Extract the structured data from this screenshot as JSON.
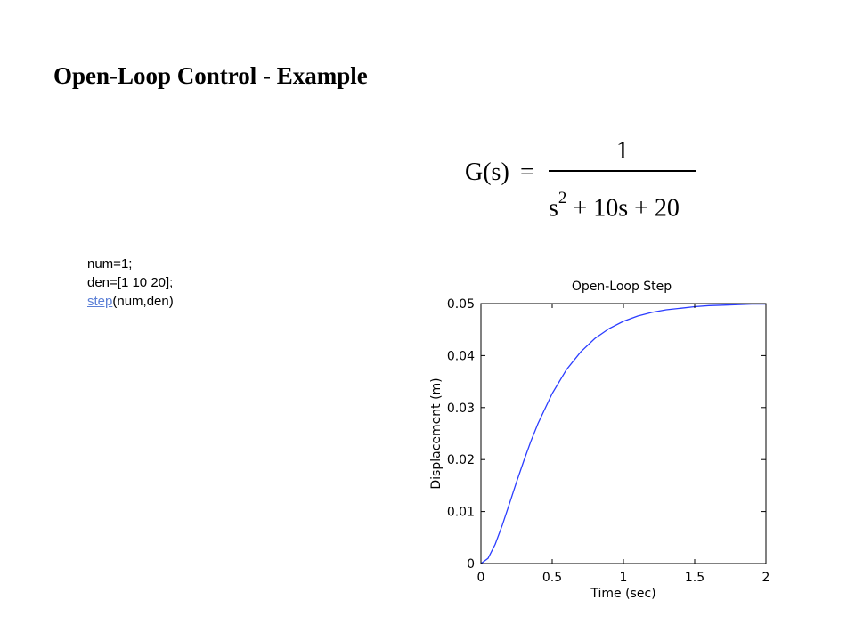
{
  "slide": {
    "title": "Open-Loop Control - Example"
  },
  "formula": {
    "lhs": "G(s)",
    "equals": "=",
    "numerator": "1",
    "denominator_s": "s",
    "denominator_exponent": "2",
    "denominator_rest": " + 10s + 20"
  },
  "code": {
    "line1": "num=1;",
    "line2": "den=[1 10 20];",
    "function_link": "step",
    "function_args": "(num,den)"
  },
  "chart_data": {
    "type": "line",
    "title": "Open-Loop Step",
    "xlabel": "Time (sec)",
    "ylabel": "Displacement (m)",
    "xlim": [
      0,
      2
    ],
    "ylim": [
      0,
      0.05
    ],
    "xticks": [
      0,
      0.5,
      1,
      1.5,
      2
    ],
    "xtick_labels": [
      "0",
      "0.5",
      "1",
      "1.5",
      "2"
    ],
    "yticks": [
      0,
      0.01,
      0.02,
      0.03,
      0.04,
      0.05
    ],
    "ytick_labels": [
      "0",
      "0.01",
      "0.02",
      "0.03",
      "0.04",
      "0.05"
    ],
    "grid": false,
    "series": [
      {
        "color": "#2a3cff",
        "x": [
          0,
          0.05,
          0.1,
          0.15,
          0.2,
          0.25,
          0.3,
          0.35,
          0.4,
          0.5,
          0.6,
          0.7,
          0.8,
          0.9,
          1.0,
          1.1,
          1.2,
          1.3,
          1.4,
          1.5,
          1.6,
          1.7,
          1.8,
          1.9,
          2.0
        ],
        "y": [
          0,
          0.001,
          0.0037,
          0.0074,
          0.0115,
          0.0157,
          0.0197,
          0.0235,
          0.0269,
          0.0327,
          0.0373,
          0.0407,
          0.0433,
          0.0452,
          0.0466,
          0.0476,
          0.0483,
          0.0488,
          0.0491,
          0.0494,
          0.0496,
          0.0497,
          0.0498,
          0.0499,
          0.0499
        ]
      }
    ],
    "reference_line": {
      "y": 0.05,
      "style": "dashed",
      "color": "#000000"
    }
  }
}
